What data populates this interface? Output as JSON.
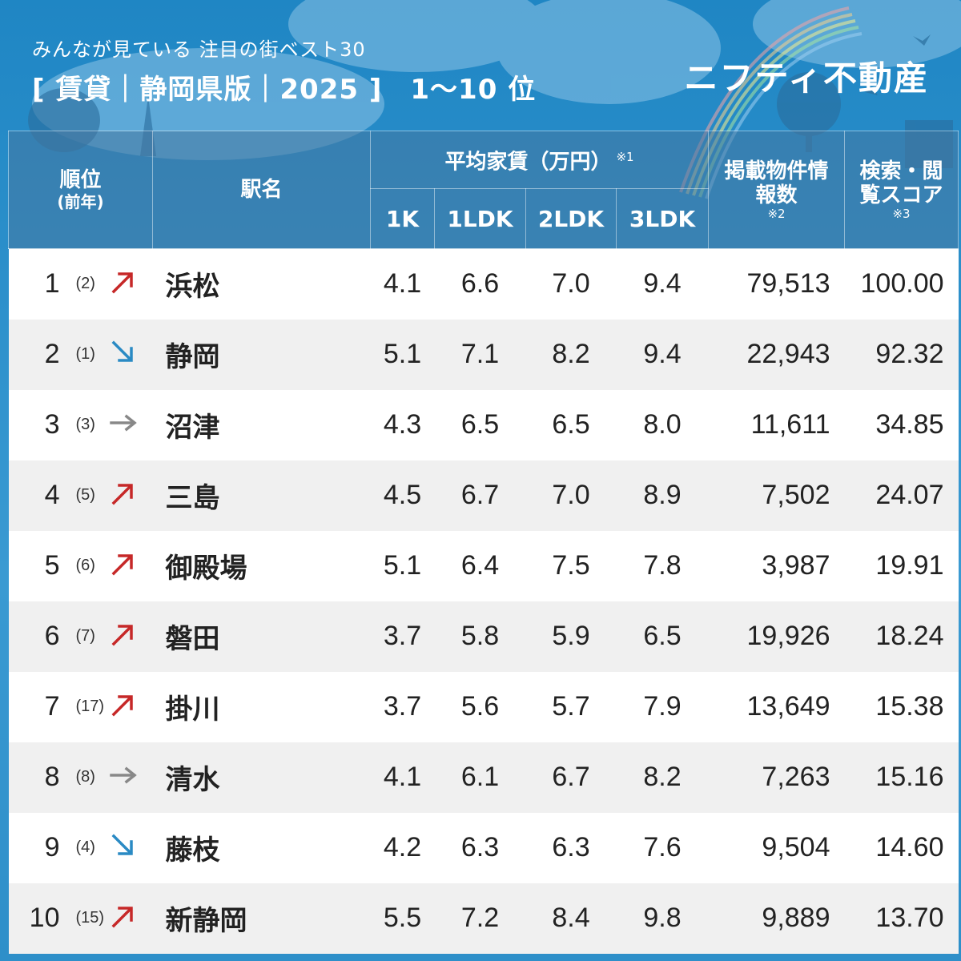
{
  "header": {
    "subtitle": "みんなが見ている 注目の街ベスト30",
    "title": "[ 賃貸｜静岡県版｜2025 ]　1〜10 位",
    "brand": "ニフティ不動産"
  },
  "colors": {
    "background": "#2e8fc9",
    "header_cell": "#5a86ad",
    "row_odd": "#ffffff",
    "row_even": "#f0f0f0",
    "trend_up": "#c62828",
    "trend_down": "#2a8ac4",
    "trend_flat": "#888888"
  },
  "chart_data": {
    "type": "table",
    "columns": {
      "rank": "順位",
      "rank_sub": "(前年)",
      "station": "駅名",
      "rent_group": "平均家賃（万円）",
      "rent_note": "※1",
      "rent_1k": "1K",
      "rent_1ldk": "1LDK",
      "rent_2ldk": "2LDK",
      "rent_3ldk": "3LDK",
      "listings": "掲載物件情報数",
      "listings_note": "※2",
      "score": "検索・閲覧スコア",
      "score_note": "※3"
    },
    "rows": [
      {
        "rank": "1",
        "prev": "(2)",
        "trend": "up",
        "station": "浜松",
        "rent_1k": "4.1",
        "rent_1ldk": "6.6",
        "rent_2ldk": "7.0",
        "rent_3ldk": "9.4",
        "listings": "79,513",
        "score": "100.00"
      },
      {
        "rank": "2",
        "prev": "(1)",
        "trend": "down",
        "station": "静岡",
        "rent_1k": "5.1",
        "rent_1ldk": "7.1",
        "rent_2ldk": "8.2",
        "rent_3ldk": "9.4",
        "listings": "22,943",
        "score": "92.32"
      },
      {
        "rank": "3",
        "prev": "(3)",
        "trend": "flat",
        "station": "沼津",
        "rent_1k": "4.3",
        "rent_1ldk": "6.5",
        "rent_2ldk": "6.5",
        "rent_3ldk": "8.0",
        "listings": "11,611",
        "score": "34.85"
      },
      {
        "rank": "4",
        "prev": "(5)",
        "trend": "up",
        "station": "三島",
        "rent_1k": "4.5",
        "rent_1ldk": "6.7",
        "rent_2ldk": "7.0",
        "rent_3ldk": "8.9",
        "listings": "7,502",
        "score": "24.07"
      },
      {
        "rank": "5",
        "prev": "(6)",
        "trend": "up",
        "station": "御殿場",
        "rent_1k": "5.1",
        "rent_1ldk": "6.4",
        "rent_2ldk": "7.5",
        "rent_3ldk": "7.8",
        "listings": "3,987",
        "score": "19.91"
      },
      {
        "rank": "6",
        "prev": "(7)",
        "trend": "up",
        "station": "磐田",
        "rent_1k": "3.7",
        "rent_1ldk": "5.8",
        "rent_2ldk": "5.9",
        "rent_3ldk": "6.5",
        "listings": "19,926",
        "score": "18.24"
      },
      {
        "rank": "7",
        "prev": "(17)",
        "trend": "up",
        "station": "掛川",
        "rent_1k": "3.7",
        "rent_1ldk": "5.6",
        "rent_2ldk": "5.7",
        "rent_3ldk": "7.9",
        "listings": "13,649",
        "score": "15.38"
      },
      {
        "rank": "8",
        "prev": "(8)",
        "trend": "flat",
        "station": "清水",
        "rent_1k": "4.1",
        "rent_1ldk": "6.1",
        "rent_2ldk": "6.7",
        "rent_3ldk": "8.2",
        "listings": "7,263",
        "score": "15.16"
      },
      {
        "rank": "9",
        "prev": "(4)",
        "trend": "down",
        "station": "藤枝",
        "rent_1k": "4.2",
        "rent_1ldk": "6.3",
        "rent_2ldk": "6.3",
        "rent_3ldk": "7.6",
        "listings": "9,504",
        "score": "14.60"
      },
      {
        "rank": "10",
        "prev": "(15)",
        "trend": "up",
        "station": "新静岡",
        "rent_1k": "5.5",
        "rent_1ldk": "7.2",
        "rent_2ldk": "8.4",
        "rent_3ldk": "9.8",
        "listings": "9,889",
        "score": "13.70"
      }
    ]
  }
}
